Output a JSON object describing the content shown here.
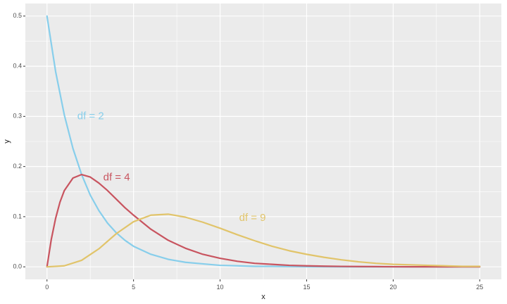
{
  "chart_data": {
    "type": "line",
    "xlabel": "x",
    "ylabel": "y",
    "xlim": [
      -1.25,
      26.25
    ],
    "ylim": [
      -0.025,
      0.525
    ],
    "x_ticks": [
      0,
      5,
      10,
      15,
      20,
      25
    ],
    "x_tick_labels": [
      "0",
      "5",
      "10",
      "15",
      "20",
      "25"
    ],
    "y_ticks": [
      0.0,
      0.1,
      0.2,
      0.3,
      0.4,
      0.5
    ],
    "y_tick_labels": [
      "0.0",
      "0.1",
      "0.2",
      "0.3",
      "0.4",
      "0.5"
    ],
    "grid": true,
    "legend": "none",
    "panel_color": "#EBEBEB",
    "series": [
      {
        "name": "df = 2",
        "color": "#87CEEB",
        "x": [
          0,
          0.5,
          1,
          1.5,
          2,
          2.5,
          3,
          3.5,
          4,
          4.5,
          5,
          6,
          7,
          8,
          9,
          10,
          11,
          12,
          13,
          14,
          15,
          16,
          17,
          18,
          19,
          20,
          21,
          22,
          23,
          24,
          25
        ],
        "y": [
          0.5,
          0.389,
          0.303,
          0.236,
          0.184,
          0.143,
          0.112,
          0.087,
          0.068,
          0.053,
          0.041,
          0.025,
          0.015,
          0.009,
          0.006,
          0.003,
          0.002,
          0.001,
          0.001,
          0.0005,
          0.0003,
          0.0002,
          0.0001,
          0.0001,
          0.0,
          0.0,
          0.0,
          0.0,
          0.0,
          0.0,
          0.0
        ]
      },
      {
        "name": "df = 4",
        "color": "#C8545F",
        "x": [
          0,
          0.25,
          0.5,
          0.75,
          1,
          1.5,
          2,
          2.5,
          3,
          3.5,
          4,
          4.5,
          5,
          6,
          7,
          8,
          9,
          10,
          11,
          12,
          13,
          14,
          15,
          16,
          17,
          18,
          19,
          20,
          21,
          22,
          23,
          24,
          25
        ],
        "y": [
          0.0,
          0.055,
          0.097,
          0.129,
          0.152,
          0.177,
          0.184,
          0.179,
          0.167,
          0.152,
          0.135,
          0.118,
          0.103,
          0.075,
          0.053,
          0.037,
          0.025,
          0.017,
          0.011,
          0.007,
          0.005,
          0.003,
          0.002,
          0.0013,
          0.0009,
          0.0006,
          0.0004,
          0.0002,
          0.0001,
          0.0001,
          0.0001,
          0.0,
          0.0
        ]
      },
      {
        "name": "df = 9",
        "color": "#E1C46A",
        "x": [
          0,
          1,
          2,
          3,
          4,
          5,
          6,
          7,
          8,
          9,
          10,
          11,
          12,
          13,
          14,
          15,
          16,
          17,
          18,
          19,
          20,
          21,
          22,
          23,
          24,
          25
        ],
        "y": [
          0.0,
          0.002,
          0.013,
          0.036,
          0.066,
          0.09,
          0.103,
          0.105,
          0.099,
          0.089,
          0.077,
          0.064,
          0.052,
          0.041,
          0.032,
          0.025,
          0.019,
          0.014,
          0.01,
          0.007,
          0.005,
          0.004,
          0.003,
          0.002,
          0.001,
          0.001
        ]
      }
    ],
    "annotations": [
      {
        "text": "df = 2",
        "x": 1.75,
        "y": 0.3,
        "color": "#87CEEB"
      },
      {
        "text": "df = 4",
        "x": 3.25,
        "y": 0.178,
        "color": "#C8545F"
      },
      {
        "text": "df = 9",
        "x": 11.1,
        "y": 0.097,
        "color": "#E1C46A"
      }
    ]
  }
}
